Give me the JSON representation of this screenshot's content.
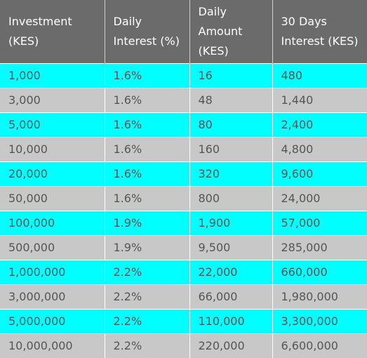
{
  "table": {
    "headers": [
      "Investment (KES)",
      "Daily Interest (%)",
      "Daily Amount (KES)",
      "30 Days Interest (KES)"
    ],
    "rows": [
      {
        "investment": "1,000",
        "rate": "1.6%",
        "daily": "16",
        "thirty": "480"
      },
      {
        "investment": "3,000",
        "rate": "1.6%",
        "daily": "48",
        "thirty": "1,440"
      },
      {
        "investment": "5,000",
        "rate": "1.6%",
        "daily": "80",
        "thirty": "2,400"
      },
      {
        "investment": "10,000",
        "rate": "1.6%",
        "daily": "160",
        "thirty": "4,800"
      },
      {
        "investment": "20,000",
        "rate": "1.6%",
        "daily": "320",
        "thirty": "9,600"
      },
      {
        "investment": "50,000",
        "rate": "1.6%",
        "daily": "800",
        "thirty": "24,000"
      },
      {
        "investment": "100,000",
        "rate": "1.9%",
        "daily": "1,900",
        "thirty": "57,000"
      },
      {
        "investment": "500,000",
        "rate": "1.9%",
        "daily": "9,500",
        "thirty": "285,000"
      },
      {
        "investment": "1,000,000",
        "rate": "2.2%",
        "daily": "22,000",
        "thirty": "660,000"
      },
      {
        "investment": "3,000,000",
        "rate": "2.2%",
        "daily": "66,000",
        "thirty": "1,980,000"
      },
      {
        "investment": "5,000,000",
        "rate": "2.2%",
        "daily": "110,000",
        "thirty": "3,300,000"
      },
      {
        "investment": "10,000,000",
        "rate": "2.2%",
        "daily": "220,000",
        "thirty": "6,600,000"
      }
    ]
  },
  "colors": {
    "header_bg": "#6b6b6b",
    "row_highlight": "#00ffff",
    "row_alt": "#c8c8c8",
    "text": "#555555"
  }
}
